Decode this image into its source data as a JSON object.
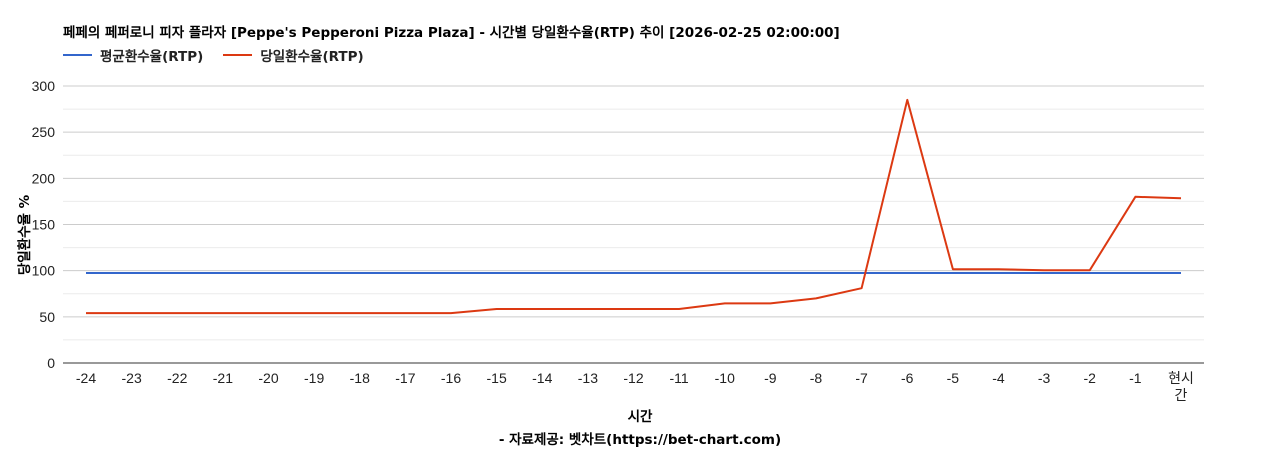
{
  "chart_data": {
    "type": "line",
    "title": "페페의 페퍼로니 피자 플라자 [Peppe's Pepperoni Pizza Plaza] - 시간별 당일환수율(RTP) 추이 [2026-02-25 02:00:00]",
    "xlabel": "시간",
    "ylabel": "당일환수율 %",
    "credit": "- 자료제공: 벳차트(https://bet-chart.com)",
    "categories": [
      "-24",
      "-23",
      "-22",
      "-21",
      "-20",
      "-19",
      "-18",
      "-17",
      "-16",
      "-15",
      "-14",
      "-13",
      "-12",
      "-11",
      "-10",
      "-9",
      "-8",
      "-7",
      "-6",
      "-5",
      "-4",
      "-3",
      "-2",
      "-1",
      "현시간"
    ],
    "series": [
      {
        "name": "평균환수율(RTP)",
        "color": "#3366cc",
        "values": [
          97.5,
          97.5,
          97.5,
          97.5,
          97.5,
          97.5,
          97.5,
          97.5,
          97.5,
          97.5,
          97.5,
          97.5,
          97.5,
          97.5,
          97.5,
          97.5,
          97.5,
          97.5,
          97.5,
          97.5,
          97.5,
          97.5,
          97.5,
          97.5,
          97.5
        ]
      },
      {
        "name": "당일환수율(RTP)",
        "color": "#dc3912",
        "values": [
          54,
          54,
          54,
          54,
          54,
          54,
          54,
          54,
          54,
          58.5,
          58.5,
          58.5,
          58.5,
          58.5,
          64.5,
          64.5,
          70,
          81,
          285,
          101.5,
          101.5,
          100.5,
          100.5,
          180,
          178.5
        ]
      }
    ],
    "yticks": [
      0,
      50,
      100,
      150,
      200,
      250,
      300
    ],
    "ylim": [
      0,
      300
    ],
    "grid": true,
    "minor_grid": true,
    "legend_position": "top"
  }
}
